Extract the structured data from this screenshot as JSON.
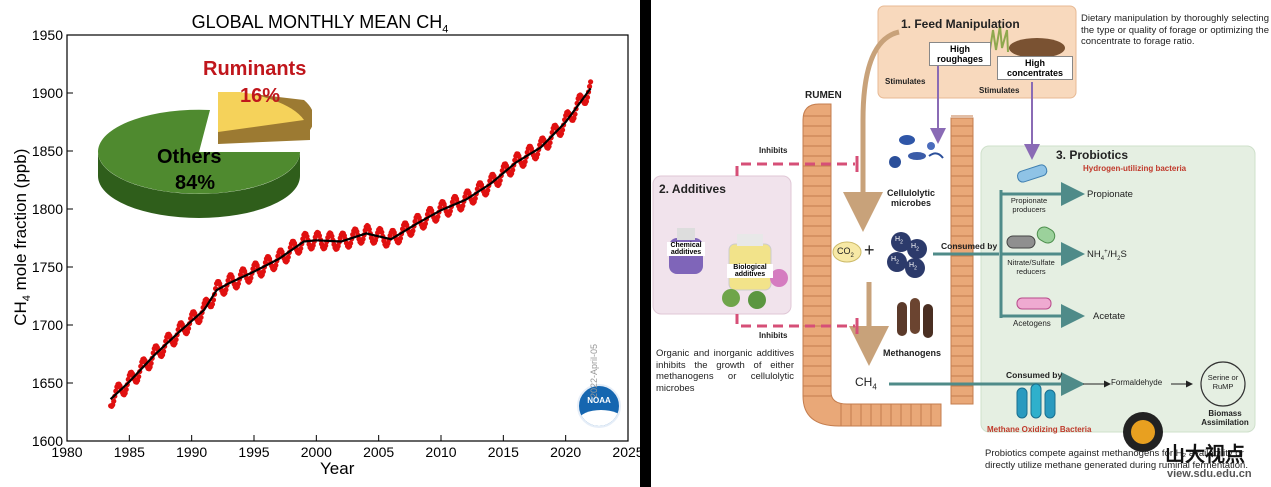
{
  "chart": {
    "title_main": "GLOBAL MONTHLY MEAN CH",
    "title_sub": "4",
    "ylabel_main": "CH",
    "ylabel_sub": "4",
    "ylabel_rest": " mole fraction (ppb)",
    "xlabel": "Year",
    "watermark_date": "2022-April-05",
    "logo_text": "NOAA",
    "pie": {
      "slices": [
        {
          "name": "Ruminants",
          "percent": "16%",
          "value": 16,
          "color": "#f5d25a"
        },
        {
          "name": "Others",
          "percent": "84%",
          "value": 84,
          "color": "#4f8a2f"
        }
      ]
    }
  },
  "chart_data": {
    "type": "line",
    "title": "GLOBAL MONTHLY MEAN CH4",
    "xlabel": "Year",
    "ylabel": "CH4 mole fraction (ppb)",
    "xlim": [
      1980,
      2025
    ],
    "ylim": [
      1600,
      1950
    ],
    "xticks": [
      1980,
      1985,
      1990,
      1995,
      2000,
      2005,
      2010,
      2015,
      2020,
      2025
    ],
    "yticks": [
      1600,
      1650,
      1700,
      1750,
      1800,
      1850,
      1900,
      1950
    ],
    "series": [
      {
        "name": "",
        "color": "#000000",
        "x": [
          1983.5,
          1985,
          1987,
          1989,
          1991,
          1992,
          1993,
          1995,
          1997,
          1999,
          2000,
          2002,
          2004,
          2006,
          2008,
          2010,
          2012,
          2014,
          2016,
          2018,
          2020,
          2022
        ],
        "y": [
          1636,
          1651,
          1674,
          1694,
          1713,
          1730,
          1736,
          1746,
          1757,
          1772,
          1773,
          1772,
          1779,
          1774,
          1787,
          1799,
          1808,
          1822,
          1840,
          1853,
          1875,
          1904
        ]
      }
    ],
    "pie_inset": {
      "categories": [
        "Ruminants",
        "Others"
      ],
      "values": [
        16,
        84
      ]
    }
  },
  "diagram": {
    "feed": {
      "title": "1. Feed Manipulation",
      "roughages": "High\nroughages",
      "concentrates": "High\nconcentrates",
      "stimulates_left": "Stimulates",
      "stimulates_right": "Stimulates",
      "desc": "Dietary manipulation by thoroughly selecting the type or quality of forage or optimizing the concentrate to forage ratio."
    },
    "rumen": "RUMEN",
    "inhibits_top": "Inhibits",
    "inhibits_bottom": "Inhibits",
    "additives": {
      "title": "2. Additives",
      "chemical": "Chemical\nadditives",
      "biological": "Biological\nadditives",
      "desc": "Organic and inorganic additives inhibits the growth of either methanogens or cellulolytic microbes"
    },
    "cellulolytic": "Cellulolytic\nmicrobes",
    "co2": "CO",
    "co2_sub": "2",
    "h2": "H",
    "h2_sub": "2",
    "plus": "+",
    "consumed_by_top": "Consumed by",
    "methanogens": "Methanogens",
    "ch4": "CH",
    "ch4_sub": "4",
    "consumed_by_bottom": "Consumed by",
    "probiotics": {
      "title": "3. Probiotics",
      "subtitle": "Hydrogen-utilizing bacteria",
      "propionate_producers": "Propionate\nproducers",
      "propionate": "Propionate",
      "nitrate_reducers": "Nitrate/Sulfate\nreducers",
      "nh4": "NH",
      "nh4_sup": "4",
      "nh4_plus": "+",
      "h2s": "/H",
      "h2s_sub": "2",
      "h2s_s": "S",
      "acetogens": "Acetogens",
      "acetate": "Acetate",
      "formaldehyde": "Formaldehyde",
      "serine": "Serine or\nRuMP",
      "biomass": "Biomass\nAssimilation",
      "mob": "Methane Oxidizing Bacteria",
      "desc": "Probiotics compete against methanogens for H₂ availability or directly utilize methane generated during ruminal fermentation."
    },
    "watermark_cn": "山大视点",
    "watermark_url": "view.sdu.edu.cn"
  },
  "colors": {
    "data_red": "#e01010",
    "fit_black": "#000000",
    "feed_box": "#f8d9bd",
    "additives_box": "#f1e3ec",
    "probiotics_box": "#e5efe2",
    "inhibit_pink": "#d64f77",
    "arrow_teal": "#4f8b89",
    "arrow_tan": "#c8a27a",
    "arrow_purple": "#8a6bb5",
    "rumen_wall": "#e9a878",
    "mob_red": "#c0392b",
    "prob_sub_red": "#c0392b"
  }
}
